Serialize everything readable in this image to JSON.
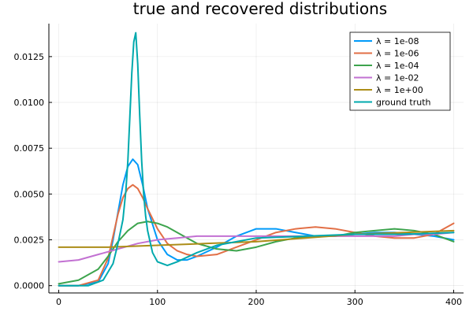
{
  "chart_data": {
    "type": "line",
    "title": "true and recovered distributions",
    "xlabel": "",
    "ylabel": "",
    "xlim": [
      -10,
      410
    ],
    "ylim": [
      -0.0004,
      0.0143
    ],
    "xticks": [
      0,
      100,
      200,
      300,
      400
    ],
    "xtick_labels": [
      "0",
      "100",
      "200",
      "300",
      "400"
    ],
    "yticks": [
      0,
      0.0025,
      0.005,
      0.0075,
      0.01,
      0.0125
    ],
    "ytick_labels": [
      "0.0000",
      "0.0025",
      "0.0050",
      "0.0075",
      "0.0100",
      "0.0125"
    ],
    "grid": true,
    "legend_position": "top-right",
    "series": [
      {
        "name": "λ =  1e-08",
        "color": "#009af9",
        "x": [
          0,
          20,
          40,
          50,
          55,
          60,
          65,
          70,
          75,
          80,
          85,
          90,
          100,
          110,
          120,
          130,
          140,
          160,
          180,
          200,
          220,
          240,
          260,
          280,
          300,
          320,
          340,
          360,
          380,
          400
        ],
        "y": [
          0.0,
          0.0,
          0.0002,
          0.0012,
          0.0025,
          0.004,
          0.0055,
          0.0065,
          0.0069,
          0.0066,
          0.0055,
          0.0042,
          0.0025,
          0.0017,
          0.0014,
          0.0014,
          0.0016,
          0.0021,
          0.0027,
          0.0031,
          0.0031,
          0.0029,
          0.0027,
          0.0027,
          0.0028,
          0.0029,
          0.0029,
          0.0028,
          0.0027,
          0.0025
        ]
      },
      {
        "name": "λ =  1e-06",
        "color": "#e26f46",
        "x": [
          0,
          20,
          40,
          50,
          55,
          60,
          65,
          70,
          75,
          80,
          85,
          90,
          100,
          110,
          120,
          130,
          140,
          160,
          180,
          200,
          220,
          240,
          260,
          280,
          300,
          320,
          340,
          360,
          380,
          400
        ],
        "y": [
          0.0,
          0.0,
          0.0003,
          0.0015,
          0.0027,
          0.0039,
          0.0048,
          0.0053,
          0.0055,
          0.0053,
          0.0048,
          0.0042,
          0.0031,
          0.0023,
          0.0019,
          0.0017,
          0.0016,
          0.0017,
          0.0021,
          0.0025,
          0.0029,
          0.0031,
          0.0032,
          0.0031,
          0.0029,
          0.0027,
          0.0026,
          0.0026,
          0.0028,
          0.0034
        ]
      },
      {
        "name": "λ =  1e-04",
        "color": "#3da44d",
        "x": [
          0,
          20,
          40,
          50,
          60,
          70,
          80,
          90,
          100,
          110,
          120,
          130,
          140,
          160,
          180,
          200,
          220,
          240,
          260,
          280,
          300,
          320,
          340,
          360,
          380,
          400
        ],
        "y": [
          0.0001,
          0.0003,
          0.0009,
          0.0016,
          0.0024,
          0.003,
          0.0034,
          0.0035,
          0.0034,
          0.0032,
          0.0029,
          0.0026,
          0.0023,
          0.002,
          0.0019,
          0.0021,
          0.0024,
          0.0026,
          0.0027,
          0.0027,
          0.0029,
          0.003,
          0.0031,
          0.003,
          0.0028,
          0.0024
        ]
      },
      {
        "name": "λ =  1e-02",
        "color": "#c271d2",
        "x": [
          0,
          20,
          40,
          60,
          80,
          100,
          120,
          140,
          160,
          180,
          200,
          220,
          240,
          260,
          280,
          300,
          320,
          340,
          360,
          380,
          400
        ],
        "y": [
          0.0013,
          0.0014,
          0.0017,
          0.002,
          0.0023,
          0.0025,
          0.0026,
          0.0027,
          0.0027,
          0.0027,
          0.0027,
          0.0027,
          0.0027,
          0.0027,
          0.0027,
          0.0027,
          0.0027,
          0.0027,
          0.0028,
          0.0028,
          0.0029
        ]
      },
      {
        "name": "λ =  1e+00",
        "color": "#ac8d18",
        "x": [
          0,
          50,
          100,
          150,
          200,
          250,
          300,
          350,
          400
        ],
        "y": [
          0.0021,
          0.0021,
          0.0022,
          0.0023,
          0.0024,
          0.0026,
          0.0028,
          0.0029,
          0.003
        ]
      },
      {
        "name": "ground truth",
        "color": "#00a9ad",
        "x": [
          0,
          30,
          45,
          55,
          60,
          65,
          68,
          70,
          72,
          74,
          76,
          78,
          80,
          82,
          84,
          86,
          88,
          90,
          95,
          100,
          110,
          120,
          140,
          160,
          180,
          200,
          250,
          300,
          350,
          400
        ],
        "y": [
          0.0,
          0.0,
          0.0003,
          0.0012,
          0.0023,
          0.0036,
          0.0052,
          0.0068,
          0.0092,
          0.0116,
          0.0133,
          0.0138,
          0.0121,
          0.0093,
          0.0068,
          0.005,
          0.0038,
          0.003,
          0.0018,
          0.0013,
          0.0011,
          0.0013,
          0.0018,
          0.0022,
          0.0024,
          0.0026,
          0.0027,
          0.0028,
          0.0028,
          0.0029
        ]
      }
    ]
  }
}
